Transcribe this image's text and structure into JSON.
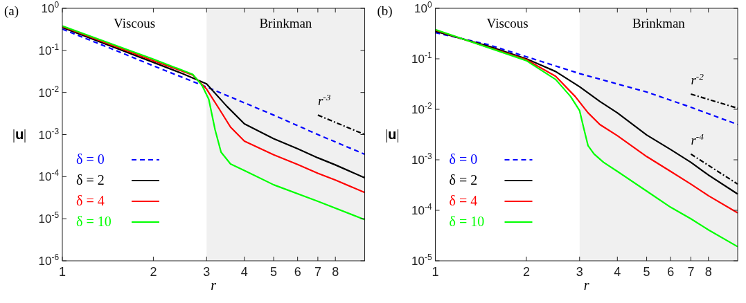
{
  "chart_data": [
    {
      "type": "line",
      "title": "(a)",
      "xlabel": "r",
      "ylabel": "|𝐮|",
      "log": "xy",
      "legend": "bottom left",
      "xlim": [
        1,
        10
      ],
      "ylim": [
        1e-06,
        1
      ],
      "xticks": [
        1,
        2,
        3,
        4,
        5,
        6,
        7,
        8
      ],
      "yticks": [
        {
          "value": 1,
          "label": "10$^{0}$"
        },
        {
          "value": 0.1,
          "label": "10$^{-1}$"
        },
        {
          "value": 0.01,
          "label": "10$^{-2}$"
        },
        {
          "value": 0.001,
          "label": "10$^{-3}$"
        },
        {
          "value": 0.0001,
          "label": "10$^{-4}$"
        },
        {
          "value": 1e-05,
          "label": "10$^{-5}$"
        },
        {
          "value": 1e-06,
          "label": "10$^{-6}$"
        }
      ],
      "bands": [
        {
          "axis": "x",
          "from": 3,
          "to": 10,
          "label": "Brinkman",
          "color": "#f0f0f0"
        }
      ],
      "annotations": [
        "Viscous"
      ],
      "series": [
        {
          "name": "δ = 0",
          "color": "#0000ff",
          "line_style": "dashed",
          "x": [
            1,
            1.5,
            2,
            3,
            5,
            7,
            10
          ],
          "values": [
            0.32,
            0.1,
            0.043,
            0.0135,
            0.0029,
            0.001,
            0.00034
          ]
        },
        {
          "name": "δ = 2",
          "color": "#000000",
          "line_style": "solid",
          "x": [
            1,
            2,
            2.5,
            3,
            3.5,
            4,
            5,
            6,
            7,
            8,
            10
          ],
          "values": [
            0.35,
            0.052,
            0.028,
            0.016,
            0.0047,
            0.0018,
            0.0008,
            0.00046,
            0.00028,
            0.00019,
            9.4e-05
          ]
        },
        {
          "name": "δ = 4",
          "color": "#ff0000",
          "line_style": "solid",
          "x": [
            1,
            2,
            2.7,
            3,
            3.3,
            3.6,
            4,
            5,
            6,
            7,
            8,
            10
          ],
          "values": [
            0.37,
            0.057,
            0.026,
            0.012,
            0.0041,
            0.0015,
            0.0007,
            0.00033,
            0.000195,
            0.00012,
            8.3e-05,
            4.2e-05
          ]
        },
        {
          "name": "δ = 10",
          "color": "#00ff00",
          "line_style": "solid",
          "x": [
            1,
            2,
            2.7,
            2.9,
            3.05,
            3.2,
            3.35,
            3.6,
            4,
            5,
            7,
            10
          ],
          "values": [
            0.38,
            0.062,
            0.027,
            0.0146,
            0.0069,
            0.0013,
            0.00038,
            0.0002,
            0.00014,
            6.4e-05,
            2.6e-05,
            9.5e-06
          ]
        },
        {
          "name": "r$^{-3}$",
          "color": "#000000",
          "line_style": "dashdot",
          "x": [
            7,
            10
          ],
          "values": [
            0.0029,
            0.001
          ]
        }
      ]
    },
    {
      "type": "line",
      "title": "(b)",
      "xlabel": "r",
      "ylabel": "|𝐮|",
      "log": "xy",
      "legend": "bottom left",
      "xlim": [
        1,
        10
      ],
      "ylim": [
        1e-05,
        1
      ],
      "xticks": [
        1,
        2,
        3,
        4,
        5,
        6,
        7,
        8
      ],
      "yticks": [
        {
          "value": 1,
          "label": "10$^{0}$"
        },
        {
          "value": 0.1,
          "label": "10$^{-1}$"
        },
        {
          "value": 0.01,
          "label": "10$^{-2}$"
        },
        {
          "value": 0.001,
          "label": "10$^{-3}$"
        },
        {
          "value": 0.0001,
          "label": "10$^{-4}$"
        },
        {
          "value": 1e-05,
          "label": "10$^{-5}$"
        }
      ],
      "bands": [
        {
          "axis": "x",
          "from": 3,
          "to": 10,
          "label": "Brinkman",
          "color": "#f0f0f0"
        }
      ],
      "annotations": [
        "Viscous"
      ],
      "series": [
        {
          "name": "δ = 0",
          "color": "#0000ff",
          "line_style": "dashed",
          "x": [
            1,
            1.5,
            2,
            3,
            5,
            7,
            10
          ],
          "values": [
            0.33,
            0.19,
            0.11,
            0.051,
            0.022,
            0.011,
            0.005
          ]
        },
        {
          "name": "δ = 2",
          "color": "#000000",
          "line_style": "solid",
          "x": [
            1,
            1.5,
            2,
            2.5,
            3,
            3.5,
            4,
            5,
            6,
            7,
            8,
            10
          ],
          "values": [
            0.35,
            0.177,
            0.1,
            0.056,
            0.028,
            0.0143,
            0.0085,
            0.0031,
            0.0016,
            0.00089,
            0.0005,
            0.00021
          ]
        },
        {
          "name": "δ = 4",
          "color": "#ff0000",
          "line_style": "solid",
          "x": [
            1,
            2,
            2.5,
            2.9,
            3.2,
            3.5,
            4,
            5,
            6,
            7,
            8,
            10
          ],
          "values": [
            0.37,
            0.096,
            0.045,
            0.018,
            0.0085,
            0.005,
            0.003,
            0.00116,
            0.00059,
            0.00033,
            0.000195,
            8.9e-05
          ]
        },
        {
          "name": "δ = 10",
          "color": "#00ff00",
          "line_style": "solid",
          "x": [
            1,
            2,
            2.5,
            2.8,
            3,
            3.1,
            3.2,
            3.35,
            3.6,
            4,
            5,
            6,
            7,
            8,
            10
          ],
          "values": [
            0.38,
            0.092,
            0.039,
            0.018,
            0.0094,
            0.0041,
            0.0019,
            0.0013,
            0.00089,
            0.00059,
            0.00024,
            0.000115,
            6.8e-05,
            4.1e-05,
            1.9e-05
          ]
        },
        {
          "name": "r$^{-2}$",
          "color": "#000000",
          "line_style": "dashdot",
          "x": [
            7,
            10
          ],
          "values": [
            0.02,
            0.0105
          ]
        },
        {
          "name": "r$^{-4}$",
          "color": "#000000",
          "line_style": "dashdot",
          "x": [
            7,
            10
          ],
          "values": [
            0.0013,
            0.00033
          ]
        }
      ]
    }
  ]
}
